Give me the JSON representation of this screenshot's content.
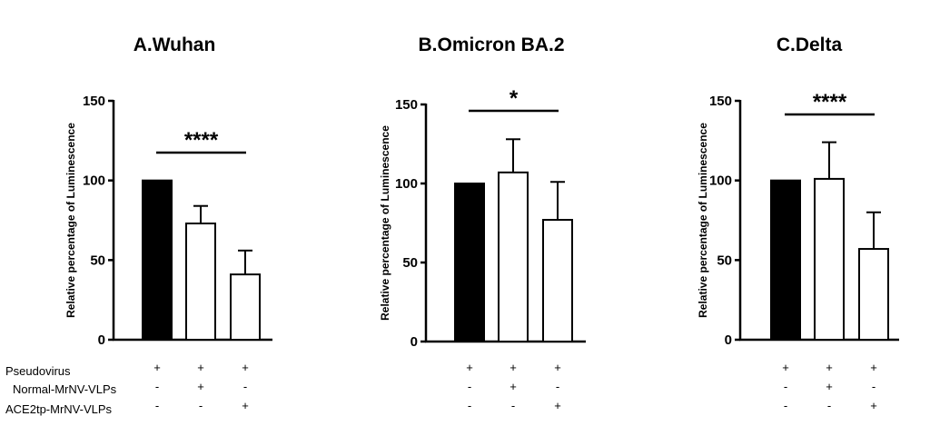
{
  "chart_data": [
    {
      "type": "bar",
      "title": "A.Wuhan",
      "ylabel": "Relative percentage of Luminescence",
      "ylim": [
        0,
        150
      ],
      "yticks": [
        0,
        50,
        100,
        150
      ],
      "categories": [
        "Pseudovirus",
        "Normal-MrNV-VLPs",
        "ACE2tp-MrNV-VLPs"
      ],
      "values": [
        100,
        73,
        41
      ],
      "errors": [
        0,
        11,
        15
      ],
      "bar_fills": [
        "#000000",
        "#ffffff",
        "#ffffff"
      ],
      "significance": {
        "label": "****",
        "from": 0,
        "to": 2
      }
    },
    {
      "type": "bar",
      "title": "B.Omicron BA.2",
      "ylabel": "Relative percentage of Luminescence",
      "ylim": [
        0,
        150
      ],
      "yticks": [
        0,
        50,
        100,
        150
      ],
      "categories": [
        "Pseudovirus",
        "Normal-MrNV-VLPs",
        "ACE2tp-MrNV-VLPs"
      ],
      "values": [
        100,
        107,
        77
      ],
      "errors": [
        0,
        21,
        24
      ],
      "bar_fills": [
        "#000000",
        "#ffffff",
        "#ffffff"
      ],
      "significance": {
        "label": "*",
        "from": 0,
        "to": 2
      }
    },
    {
      "type": "bar",
      "title": "C.Delta",
      "ylabel": "Relative percentage of Luminescence",
      "ylim": [
        0,
        150
      ],
      "yticks": [
        0,
        50,
        100,
        150
      ],
      "categories": [
        "Pseudovirus",
        "Normal-MrNV-VLPs",
        "ACE2tp-MrNV-VLPs"
      ],
      "values": [
        100,
        101,
        57
      ],
      "errors": [
        0,
        23,
        23
      ],
      "bar_fills": [
        "#000000",
        "#ffffff",
        "#ffffff"
      ],
      "significance": {
        "label": "****",
        "from": 0,
        "to": 2
      }
    }
  ],
  "treatment_table": {
    "row_labels": [
      "Pseudovirus",
      "Normal-MrNV-VLPs",
      "ACE2tp-MrNV-VLPs"
    ],
    "symbols": [
      [
        "+",
        "+",
        "+"
      ],
      [
        "-",
        "+",
        "-"
      ],
      [
        "-",
        "-",
        "+"
      ]
    ]
  }
}
